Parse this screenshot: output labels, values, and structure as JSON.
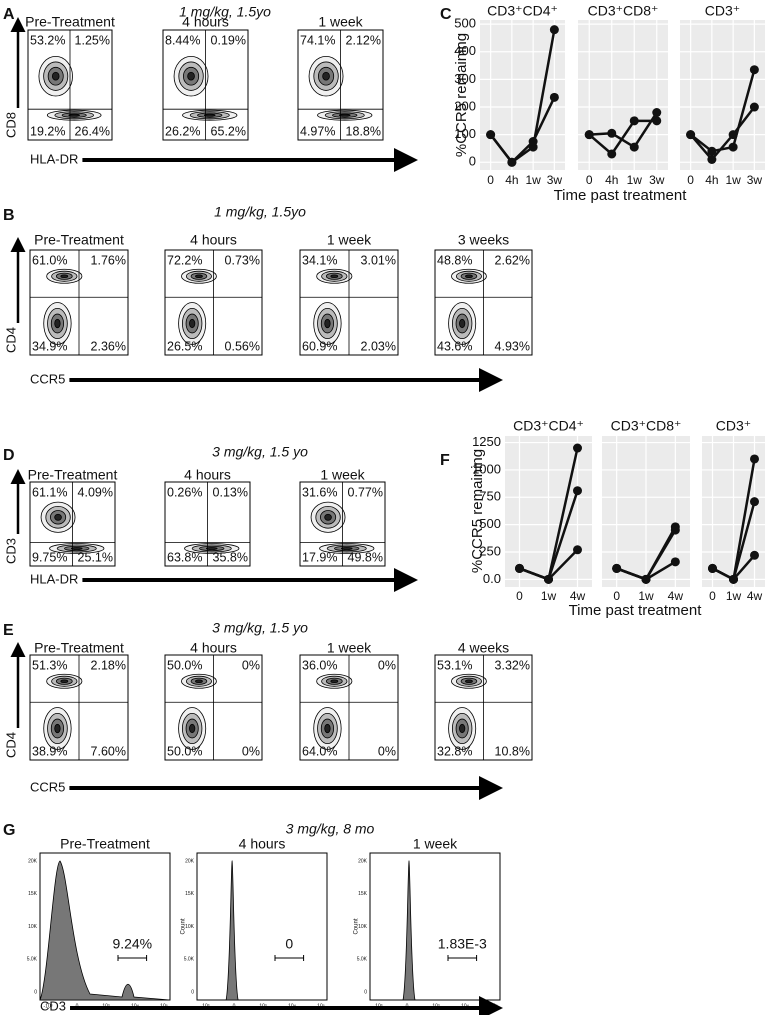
{
  "panels": [
    {
      "letter": "A",
      "title": "1 mg/kg, 1.5yo",
      "y_label": "CD8",
      "x_label": "HLA-DR",
      "plots": [
        {
          "title": "Pre-Treatment",
          "quadrants": [
            "53.2%",
            "1.25%",
            "19.2%",
            "26.4%"
          ]
        },
        {
          "title": "4 hours",
          "quadrants": [
            "8.44%",
            "0.19%",
            "26.2%",
            "65.2%"
          ]
        },
        {
          "title": "1 week",
          "quadrants": [
            "74.1%",
            "2.12%",
            "4.97%",
            "18.8%"
          ]
        }
      ]
    },
    {
      "letter": "B",
      "title": "1 mg/kg, 1.5yo",
      "y_label": "CD4",
      "x_label": "CCR5",
      "plots": [
        {
          "title": "Pre-Treatment",
          "quadrants": [
            "61.0%",
            "1.76%",
            "34.9%",
            "2.36%"
          ]
        },
        {
          "title": "4 hours",
          "quadrants": [
            "72.2%",
            "0.73%",
            "26.5%",
            "0.56%"
          ]
        },
        {
          "title": "1 week",
          "quadrants": [
            "34.1%",
            "3.01%",
            "60.9%",
            "2.03%"
          ]
        },
        {
          "title": "3 weeks",
          "quadrants": [
            "48.8%",
            "2.62%",
            "43.6%",
            "4.93%"
          ]
        }
      ]
    },
    {
      "letter": "D",
      "title": "3 mg/kg, 1.5 yo",
      "y_label": "CD3",
      "x_label": "HLA-DR",
      "plots": [
        {
          "title": "Pre-Treatment",
          "quadrants": [
            "61.1%",
            "4.09%",
            "9.75%",
            "25.1%"
          ]
        },
        {
          "title": "4 hours",
          "quadrants": [
            "0.26%",
            "0.13%",
            "63.8%",
            "35.8%"
          ]
        },
        {
          "title": "1 week",
          "quadrants": [
            "31.6%",
            "0.77%",
            "17.9%",
            "49.8%"
          ]
        }
      ]
    },
    {
      "letter": "E",
      "title": "3 mg/kg, 1.5 yo",
      "y_label": "CD4",
      "x_label": "CCR5",
      "plots": [
        {
          "title": "Pre-Treatment",
          "quadrants": [
            "51.3%",
            "2.18%",
            "38.9%",
            "7.60%"
          ]
        },
        {
          "title": "4 hours",
          "quadrants": [
            "50.0%",
            "0%",
            "50.0%",
            "0%"
          ]
        },
        {
          "title": "1 week",
          "quadrants": [
            "36.0%",
            "0%",
            "64.0%",
            "0%"
          ]
        },
        {
          "title": "4 weeks",
          "quadrants": [
            "53.1%",
            "3.32%",
            "32.8%",
            "10.8%"
          ]
        }
      ]
    },
    {
      "letter": "G",
      "title": "3 mg/kg, 8 mo",
      "x_label": "CD3",
      "y_ticks": [
        "20K",
        "15K",
        "10K",
        "5.0K",
        "0"
      ],
      "x_ticks": [
        "-10³",
        "0",
        "10³",
        "10⁴",
        "10⁵"
      ],
      "plots": [
        {
          "title": "Pre-Treatment",
          "gate": "9.24%"
        },
        {
          "title": "4 hours",
          "gate": "0",
          "y_label": "Count"
        },
        {
          "title": "1 week",
          "gate": "1.83E-3",
          "y_label": "Count"
        }
      ]
    }
  ],
  "chart_data": [
    {
      "type": "line",
      "letter": "C",
      "y_label": "%CCR5 remaining",
      "x_label": "Time past treatment",
      "categories": [
        "0",
        "4h",
        "1w",
        "3w"
      ],
      "ylim": [
        -28,
        515
      ],
      "yticks": [
        0,
        100,
        200,
        300,
        400,
        500
      ],
      "facets": [
        {
          "title": "CD3⁺CD4⁺",
          "series": [
            {
              "color": "#111111",
              "values": [
                100,
                0,
                55,
                480
              ]
            },
            {
              "color": "#111111",
              "values": [
                100,
                0,
                75,
                235
              ]
            }
          ]
        },
        {
          "title": "CD3⁺CD8⁺",
          "series": [
            {
              "color": "#111111",
              "values": [
                100,
                105,
                55,
                180
              ]
            },
            {
              "color": "#111111",
              "values": [
                100,
                30,
                150,
                150
              ]
            }
          ]
        },
        {
          "title": "CD3⁺",
          "series": [
            {
              "color": "#111111",
              "values": [
                100,
                40,
                55,
                335
              ]
            },
            {
              "color": "#111111",
              "values": [
                100,
                10,
                100,
                200
              ]
            }
          ]
        }
      ]
    },
    {
      "type": "line",
      "letter": "F",
      "y_label": "%CCR5 remaining",
      "x_label": "Time past treatment",
      "categories": [
        "0",
        "1w",
        "4w"
      ],
      "ylim": [
        -70,
        1310
      ],
      "yticks": [
        {
          "value": 0,
          "label": "0.0"
        },
        250,
        500,
        750,
        1000,
        1250
      ],
      "facets": [
        {
          "title": "CD3⁺CD4⁺",
          "series": [
            {
              "color": "#111111",
              "values": [
                100,
                0,
                1200
              ]
            },
            {
              "color": "#111111",
              "values": [
                100,
                0,
                810
              ]
            },
            {
              "color": "#111111",
              "values": [
                100,
                0,
                270
              ]
            }
          ]
        },
        {
          "title": "CD3⁺CD8⁺",
          "series": [
            {
              "color": "#111111",
              "values": [
                100,
                0,
                480
              ]
            },
            {
              "color": "#111111",
              "values": [
                100,
                0,
                450
              ]
            },
            {
              "color": "#111111",
              "values": [
                100,
                0,
                160
              ]
            }
          ]
        },
        {
          "title": "CD3⁺",
          "series": [
            {
              "color": "#111111",
              "values": [
                100,
                0,
                1100
              ]
            },
            {
              "color": "#111111",
              "values": [
                100,
                0,
                710
              ]
            },
            {
              "color": "#111111",
              "values": [
                100,
                0,
                220
              ]
            }
          ]
        }
      ]
    }
  ]
}
